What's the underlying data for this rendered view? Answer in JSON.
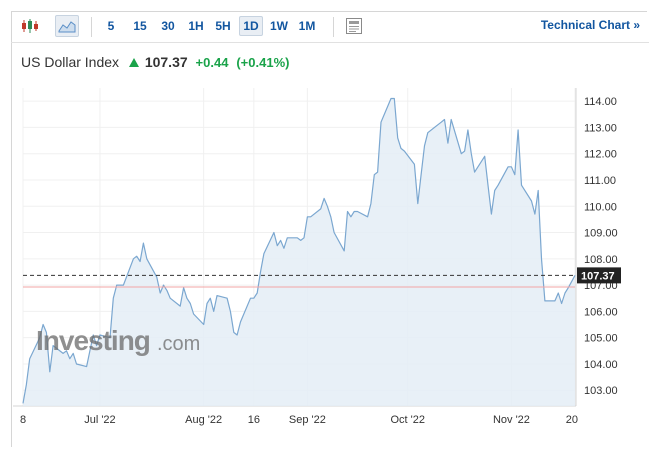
{
  "toolbar": {
    "intervals": [
      "5",
      "15",
      "30",
      "1H",
      "5H",
      "1D",
      "1W",
      "1M"
    ],
    "active_interval": "1D",
    "technical_chart_label": "Technical Chart »",
    "icons": [
      "candlestick-icon",
      "area-chart-icon",
      "news-icon"
    ]
  },
  "quote": {
    "name": "US Dollar Index",
    "price": "107.37",
    "change": "+0.44",
    "change_pct": "(+0.41%)",
    "direction_color": "#1aa34a"
  },
  "watermark": {
    "brand": "Investing",
    "suffix": ".com"
  },
  "current_price_label": "107.37",
  "chart_data": {
    "type": "area",
    "title": "",
    "xlabel": "",
    "ylabel": "",
    "ylim": [
      102.4,
      114.5
    ],
    "y_ticks": [
      103,
      104,
      105,
      106,
      107,
      108,
      109,
      110,
      111,
      112,
      113,
      114
    ],
    "y_tick_labels": [
      "103.00",
      "104.00",
      "105.00",
      "106.00",
      "107.00",
      "108.00",
      "109.00",
      "110.00",
      "111.00",
      "112.00",
      "113.00",
      "114.00"
    ],
    "x_tick_labels": [
      "8",
      "Jul '22",
      "Aug '22",
      "16",
      "Sep '22",
      "Oct '22",
      "Nov '22",
      "20"
    ],
    "x_tick_dates": [
      "2022-06-08",
      "2022-07-01",
      "2022-08-01",
      "2022-08-16",
      "2022-09-01",
      "2022-10-01",
      "2022-11-01",
      "2022-11-20"
    ],
    "current_price": 107.37,
    "previous_close": 106.93,
    "grid": true,
    "colors": {
      "line": "#7ba7d0",
      "fill": "#e4edf6",
      "ref_line": "#f2a5a5",
      "price_tag": "#222222"
    },
    "series": [
      {
        "x": [
          "2022-06-08",
          "2022-06-09",
          "2022-06-10",
          "2022-06-13",
          "2022-06-14",
          "2022-06-15",
          "2022-06-16",
          "2022-06-17",
          "2022-06-20",
          "2022-06-21",
          "2022-06-22",
          "2022-06-23",
          "2022-06-24",
          "2022-06-27",
          "2022-06-28",
          "2022-06-29",
          "2022-06-30",
          "2022-07-01",
          "2022-07-04",
          "2022-07-05",
          "2022-07-06",
          "2022-07-07",
          "2022-07-08",
          "2022-07-11",
          "2022-07-12",
          "2022-07-13",
          "2022-07-14",
          "2022-07-15",
          "2022-07-18",
          "2022-07-19",
          "2022-07-20",
          "2022-07-21",
          "2022-07-22",
          "2022-07-25",
          "2022-07-26",
          "2022-07-27",
          "2022-07-28",
          "2022-07-29",
          "2022-08-01",
          "2022-08-02",
          "2022-08-03",
          "2022-08-04",
          "2022-08-05",
          "2022-08-08",
          "2022-08-09",
          "2022-08-10",
          "2022-08-11",
          "2022-08-12",
          "2022-08-15",
          "2022-08-16",
          "2022-08-17",
          "2022-08-18",
          "2022-08-19",
          "2022-08-22",
          "2022-08-23",
          "2022-08-24",
          "2022-08-25",
          "2022-08-26",
          "2022-08-29",
          "2022-08-30",
          "2022-08-31",
          "2022-09-01",
          "2022-09-02",
          "2022-09-05",
          "2022-09-06",
          "2022-09-07",
          "2022-09-08",
          "2022-09-09",
          "2022-09-12",
          "2022-09-13",
          "2022-09-14",
          "2022-09-15",
          "2022-09-16",
          "2022-09-19",
          "2022-09-20",
          "2022-09-21",
          "2022-09-22",
          "2022-09-23",
          "2022-09-26",
          "2022-09-27",
          "2022-09-28",
          "2022-09-29",
          "2022-09-30",
          "2022-10-03",
          "2022-10-04",
          "2022-10-05",
          "2022-10-06",
          "2022-10-07",
          "2022-10-10",
          "2022-10-11",
          "2022-10-12",
          "2022-10-13",
          "2022-10-14",
          "2022-10-17",
          "2022-10-18",
          "2022-10-19",
          "2022-10-20",
          "2022-10-21",
          "2022-10-24",
          "2022-10-25",
          "2022-10-26",
          "2022-10-27",
          "2022-10-28",
          "2022-10-31",
          "2022-11-01",
          "2022-11-02",
          "2022-11-03",
          "2022-11-04",
          "2022-11-07",
          "2022-11-08",
          "2022-11-09",
          "2022-11-10",
          "2022-11-11",
          "2022-11-14",
          "2022-11-15",
          "2022-11-16",
          "2022-11-17",
          "2022-11-18"
        ],
        "values": [
          102.5,
          103.2,
          104.2,
          105.0,
          105.5,
          105.2,
          103.7,
          104.7,
          104.4,
          104.5,
          104.2,
          104.4,
          104.0,
          103.9,
          104.5,
          105.1,
          104.7,
          105.1,
          105.0,
          106.5,
          107.0,
          107.0,
          107.0,
          108.0,
          108.1,
          107.9,
          108.6,
          108.0,
          107.3,
          106.7,
          107.0,
          106.8,
          106.5,
          106.2,
          106.9,
          106.5,
          106.3,
          105.9,
          105.5,
          106.3,
          106.5,
          106.0,
          106.6,
          106.5,
          106.0,
          105.2,
          105.1,
          105.6,
          106.5,
          106.5,
          106.7,
          107.5,
          108.2,
          109.0,
          108.5,
          108.7,
          108.4,
          108.8,
          108.8,
          108.7,
          108.8,
          109.6,
          109.6,
          109.9,
          110.3,
          110.0,
          109.6,
          109.0,
          108.3,
          109.8,
          109.6,
          109.8,
          109.8,
          109.6,
          110.1,
          111.2,
          111.3,
          113.2,
          114.1,
          114.1,
          112.6,
          112.2,
          112.1,
          111.6,
          110.1,
          111.2,
          112.3,
          112.8,
          113.1,
          113.2,
          113.3,
          112.4,
          113.3,
          112.0,
          112.1,
          112.9,
          112.0,
          111.3,
          111.9,
          110.8,
          109.7,
          110.6,
          110.8,
          111.5,
          111.5,
          111.2,
          112.9,
          110.8,
          110.2,
          109.7,
          110.6,
          108.0,
          106.4,
          106.4,
          106.7,
          106.3,
          106.7,
          106.9
        ]
      }
    ]
  }
}
